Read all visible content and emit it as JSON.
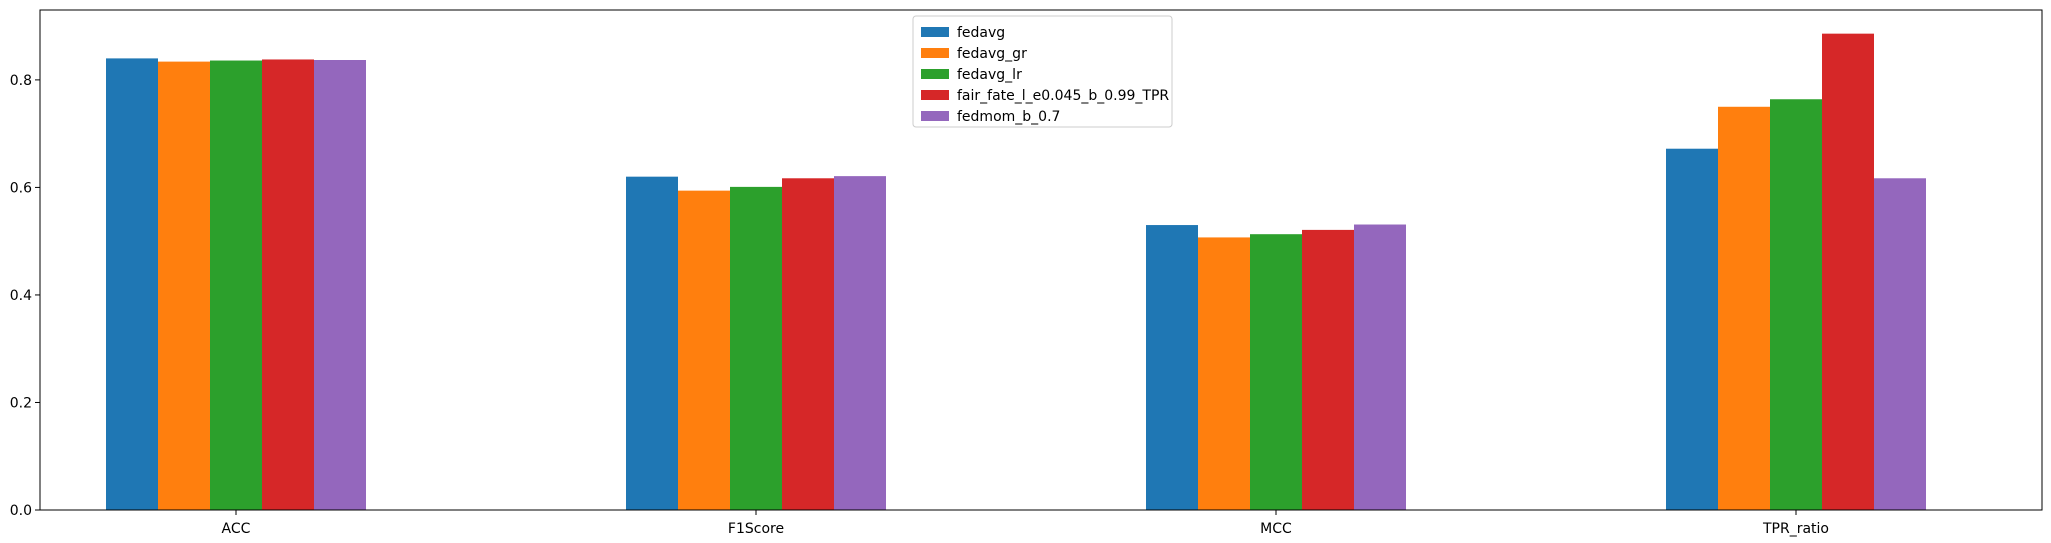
{
  "chart_data": {
    "type": "bar",
    "title": "",
    "xlabel": "",
    "ylabel": "",
    "categories": [
      "ACC",
      "F1Score",
      "MCC",
      "TPR_ratio"
    ],
    "ylim": [
      0,
      0.93
    ],
    "yticks": [
      "0.0",
      "0.2",
      "0.4",
      "0.6",
      "0.8"
    ],
    "ytick_values": [
      0.0,
      0.2,
      0.4,
      0.6,
      0.8
    ],
    "grid": false,
    "legend_position": "top-center",
    "series": [
      {
        "name": "fedavg",
        "color": "#1f77b4",
        "values": [
          0.84,
          0.62,
          0.53,
          0.672
        ]
      },
      {
        "name": "fedavg_gr",
        "color": "#ff7f0e",
        "values": [
          0.834,
          0.594,
          0.507,
          0.75
        ]
      },
      {
        "name": "fedavg_lr",
        "color": "#2ca02c",
        "values": [
          0.836,
          0.601,
          0.513,
          0.764
        ]
      },
      {
        "name": "fair_fate_l_e0.045_b_0.99_TPR",
        "color": "#d62728",
        "values": [
          0.838,
          0.617,
          0.521,
          0.886
        ]
      },
      {
        "name": "fedmom_b_0.7",
        "color": "#9467bd",
        "values": [
          0.837,
          0.621,
          0.531,
          0.617
        ]
      }
    ]
  }
}
